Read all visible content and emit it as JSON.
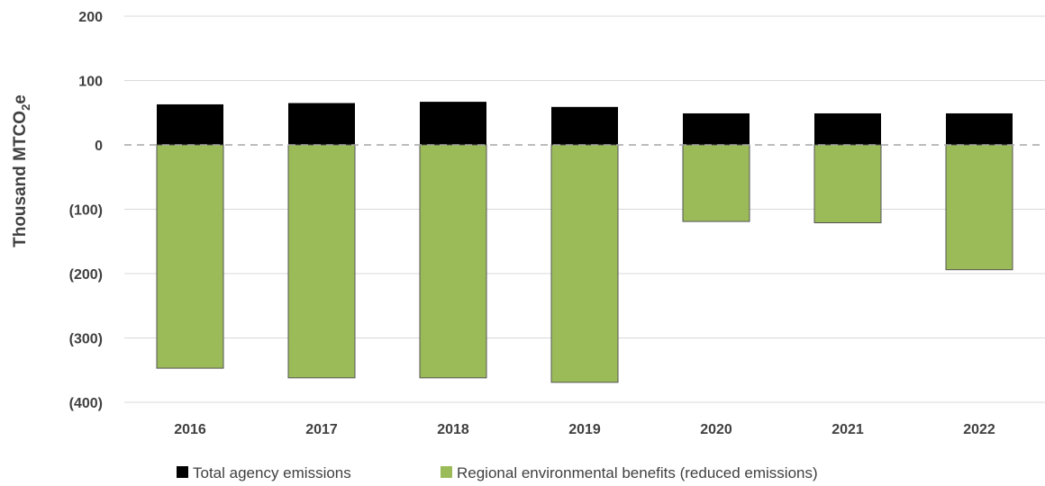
{
  "chart_data": {
    "type": "bar",
    "stacked": true,
    "categories": [
      "2016",
      "2017",
      "2018",
      "2019",
      "2020",
      "2021",
      "2022"
    ],
    "series": [
      {
        "name": "Total agency emissions",
        "color": "#000000",
        "values": [
          63,
          65,
          67,
          59,
          49,
          49,
          49
        ]
      },
      {
        "name": "Regional environmental benefits (reduced emissions)",
        "color": "#9BBB59",
        "values": [
          -347,
          -362,
          -362,
          -369,
          -119,
          -121,
          -194
        ]
      }
    ],
    "ylabel": "Thousand MTCO2e",
    "ylabel_main": "Thousand MTCO",
    "ylabel_sub": "2",
    "ylabel_tail": "e",
    "ylim": [
      -400,
      200
    ],
    "yticks": [
      200,
      100,
      0,
      -100,
      -200,
      -300,
      -400
    ],
    "ytick_labels": [
      "200",
      "100",
      "0",
      "(100)",
      "(200)",
      "(300)",
      "(400)"
    ],
    "zero_line": "dashed",
    "grid": true,
    "legend_position": "bottom"
  }
}
